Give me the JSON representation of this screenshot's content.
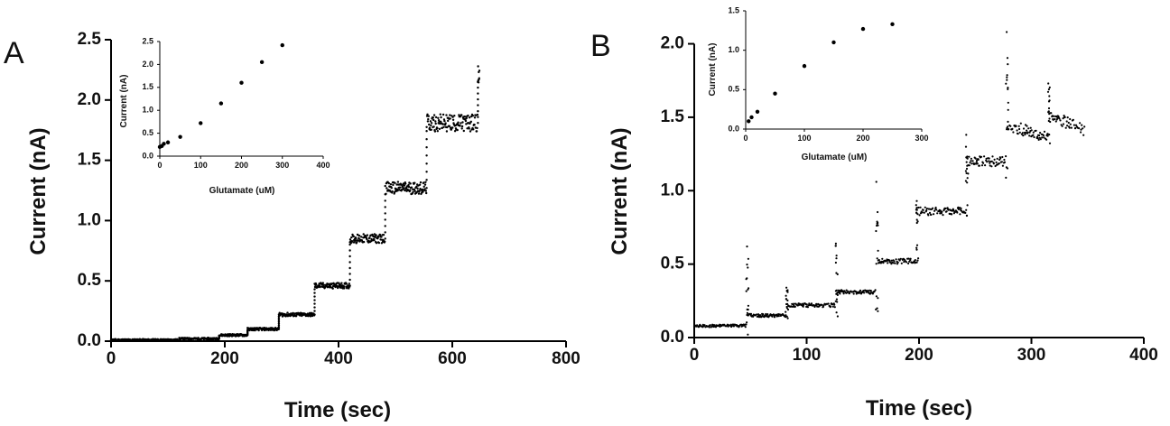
{
  "chart_data": [
    {
      "id": "A",
      "panel_label": "A",
      "type": "scatter",
      "xlabel": "Time (sec)",
      "ylabel": "Current (nA)",
      "xlim": [
        0,
        800
      ],
      "ylim": [
        0,
        2.5
      ],
      "xticks": [
        0,
        200,
        400,
        600,
        800
      ],
      "yticks": [
        0.0,
        0.5,
        1.0,
        1.5,
        2.0,
        2.5
      ],
      "ytick_decimals": 1,
      "grid": false,
      "steps": [
        {
          "t_start": 0,
          "t_end": 120,
          "level": 0.01
        },
        {
          "t_start": 120,
          "t_end": 190,
          "level": 0.02
        },
        {
          "t_start": 190,
          "t_end": 240,
          "level": 0.05
        },
        {
          "t_start": 240,
          "t_end": 295,
          "level": 0.1
        },
        {
          "t_start": 295,
          "t_end": 358,
          "level": 0.22
        },
        {
          "t_start": 358,
          "t_end": 420,
          "level": 0.46
        },
        {
          "t_start": 420,
          "t_end": 482,
          "level": 0.85
        },
        {
          "t_start": 482,
          "t_end": 555,
          "level": 1.27
        },
        {
          "t_start": 555,
          "t_end": 645,
          "level": 1.81
        },
        {
          "t_start": 645,
          "t_end": 648,
          "level": 2.2
        }
      ],
      "inset": {
        "type": "scatter",
        "xlabel": "Glutamate  (uM)",
        "ylabel": "Current (nA)",
        "xlim": [
          0,
          400
        ],
        "ylim": [
          0,
          2.5
        ],
        "xticks": [
          0,
          100,
          200,
          300,
          400
        ],
        "yticks": [
          0.0,
          0.5,
          1.0,
          1.5,
          2.0,
          2.5
        ],
        "ytick_decimals": 1,
        "points": [
          [
            0,
            0.2
          ],
          [
            5,
            0.22
          ],
          [
            10,
            0.27
          ],
          [
            20,
            0.3
          ],
          [
            50,
            0.42
          ],
          [
            100,
            0.72
          ],
          [
            150,
            1.15
          ],
          [
            200,
            1.6
          ],
          [
            250,
            2.05
          ],
          [
            300,
            2.42
          ]
        ]
      }
    },
    {
      "id": "B",
      "panel_label": "B",
      "type": "scatter",
      "xlabel": "Time (sec)",
      "ylabel": "Current (nA)",
      "xlim": [
        0,
        400
      ],
      "ylim": [
        0,
        2.2
      ],
      "xticks": [
        0,
        100,
        200,
        300,
        400
      ],
      "yticks": [
        0.0,
        0.5,
        1.0,
        1.5,
        2.0
      ],
      "ytick_decimals": 1,
      "grid": false,
      "steps": [
        {
          "t_start": 0,
          "t_end": 47,
          "level": 0.08,
          "spike": 0.62
        },
        {
          "t_start": 47,
          "t_end": 82,
          "level": 0.15,
          "spike": 0.34
        },
        {
          "t_start": 82,
          "t_end": 126,
          "level": 0.22,
          "spike": 0.64
        },
        {
          "t_start": 126,
          "t_end": 162,
          "level": 0.31,
          "spike": 1.06
        },
        {
          "t_start": 162,
          "t_end": 198,
          "level": 0.52,
          "spike": 0.93
        },
        {
          "t_start": 198,
          "t_end": 242,
          "level": 0.86,
          "spike": 1.38
        },
        {
          "t_start": 242,
          "t_end": 278,
          "level": 1.2,
          "spike": 2.08
        },
        {
          "t_start": 278,
          "t_end": 315,
          "level": 1.45,
          "end_level": 1.36,
          "spike": 1.73
        },
        {
          "t_start": 315,
          "t_end": 348,
          "level": 1.52,
          "end_level": 1.41
        }
      ],
      "inset": {
        "type": "scatter",
        "xlabel": "Glutamate  (uM)",
        "ylabel": "Current (nA)",
        "xlim": [
          0,
          300
        ],
        "ylim": [
          0,
          1.5
        ],
        "xticks": [
          0,
          100,
          200,
          300
        ],
        "yticks": [
          0.0,
          0.5,
          1.0,
          1.5
        ],
        "ytick_decimals": 1,
        "points": [
          [
            5,
            0.1
          ],
          [
            10,
            0.15
          ],
          [
            20,
            0.22
          ],
          [
            50,
            0.45
          ],
          [
            100,
            0.8
          ],
          [
            150,
            1.1
          ],
          [
            200,
            1.27
          ],
          [
            250,
            1.33
          ]
        ]
      }
    }
  ]
}
